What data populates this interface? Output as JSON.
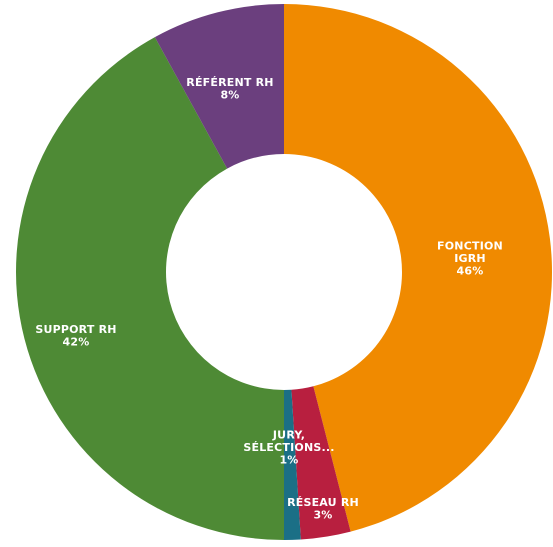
{
  "chart_data": {
    "type": "pie",
    "donut": true,
    "title": "",
    "series": [
      {
        "name": "",
        "slices": [
          {
            "label_lines": [
              "FONCTION",
              "IGRH"
            ],
            "value": 46,
            "value_text": "46%",
            "color": "#F08A00"
          },
          {
            "label_lines": [
              "RÉSEAU RH"
            ],
            "value": 3,
            "value_text": "3%",
            "color": "#B81F3F"
          },
          {
            "label_lines": [
              "JURY,",
              "SÉLECTIONS..."
            ],
            "value": 1,
            "value_text": "1%",
            "color": "#1B6F86"
          },
          {
            "label_lines": [
              "SUPPORT RH"
            ],
            "value": 42,
            "value_text": "42%",
            "color": "#4E8A35"
          },
          {
            "label_lines": [
              "RÉFÉRENT RH"
            ],
            "value": 8,
            "value_text": "8%",
            "color": "#6B3F7E"
          }
        ]
      }
    ]
  }
}
